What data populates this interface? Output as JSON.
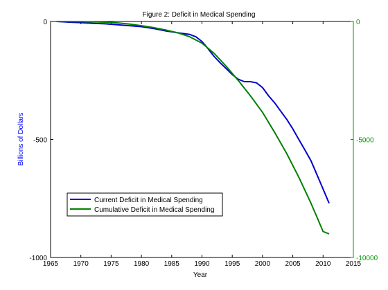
{
  "chart_data": {
    "type": "line",
    "title": "Figure 2: Deficit in Medical Spending",
    "xlabel": "Year",
    "ylabel": "Billions of Dollars",
    "y2label": "",
    "xlim": [
      1965,
      2015
    ],
    "ylim": [
      -1000,
      0
    ],
    "y2lim": [
      -10000,
      0
    ],
    "x_ticks": [
      "1965",
      "1970",
      "1975",
      "1980",
      "1985",
      "1990",
      "1995",
      "2000",
      "2005",
      "2010",
      "2015"
    ],
    "y_ticks": [
      "0",
      "-500",
      "-1000"
    ],
    "y2_ticks": [
      "0",
      "-5000",
      "-10000"
    ],
    "grid": false,
    "legend_position": "lower-left",
    "colors": {
      "current": "#0000cc",
      "cumulative": "#008000",
      "axis_left": "#0000ff",
      "axis_right": "#009900"
    },
    "series": [
      {
        "name": "Current Deficit in Medical Spending",
        "axis": "left",
        "x": [
          1966,
          1968,
          1970,
          1972,
          1974,
          1976,
          1978,
          1980,
          1982,
          1984,
          1986,
          1988,
          1989,
          1990,
          1991,
          1992,
          1993,
          1994,
          1995,
          1996,
          1997,
          1998,
          1999,
          2000,
          2001,
          2002,
          2003,
          2004,
          2005,
          2006,
          2007,
          2008,
          2009,
          2010,
          2011
        ],
        "values": [
          0,
          -3,
          -5,
          -8,
          -10,
          -14,
          -18,
          -22,
          -30,
          -40,
          -48,
          -55,
          -65,
          -85,
          -115,
          -148,
          -175,
          -200,
          -225,
          -245,
          -255,
          -255,
          -260,
          -280,
          -315,
          -345,
          -380,
          -415,
          -455,
          -500,
          -545,
          -590,
          -650,
          -710,
          -770
        ]
      },
      {
        "name": "Cumulative Deficit in Medical Spending",
        "axis": "right",
        "x": [
          1966,
          1970,
          1974,
          1976,
          1978,
          1980,
          1982,
          1984,
          1986,
          1988,
          1990,
          1992,
          1994,
          1996,
          1998,
          2000,
          2002,
          2004,
          2006,
          2008,
          2009,
          2010,
          2011
        ],
        "values": [
          0,
          -10,
          -30,
          -60,
          -110,
          -180,
          -260,
          -360,
          -480,
          -650,
          -920,
          -1350,
          -1900,
          -2500,
          -3150,
          -3850,
          -4700,
          -5600,
          -6600,
          -7700,
          -8300,
          -8900,
          -9000
        ]
      }
    ]
  }
}
